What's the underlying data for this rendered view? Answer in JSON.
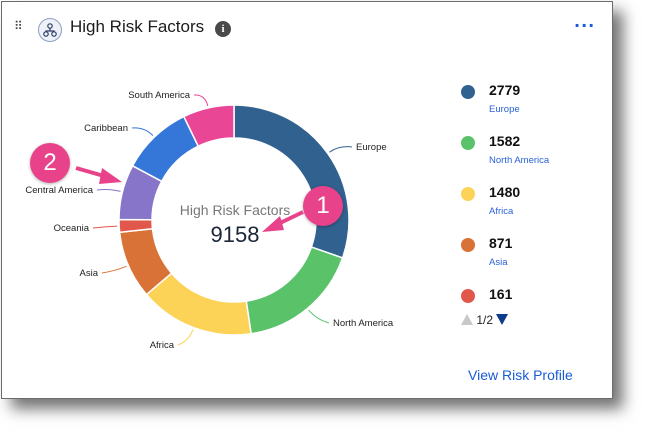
{
  "header": {
    "title": "High Risk Factors",
    "info_icon": "info-icon",
    "menu_icon": "more-horizontal-icon",
    "drag_icon": "drag-handle-icon",
    "widget_icon": "hierarchy-icon"
  },
  "center": {
    "label": "High Risk Factors",
    "total": "9158"
  },
  "chart_data": {
    "type": "pie",
    "variant": "donut",
    "categories": [
      "Europe",
      "North America",
      "Africa",
      "Asia",
      "Oceania",
      "Central America",
      "Caribbean",
      "South America"
    ],
    "values": [
      2779,
      1582,
      1480,
      871,
      161,
      711,
      916,
      658
    ],
    "colors": [
      "#30618f",
      "#5ac36a",
      "#fcd257",
      "#d97236",
      "#e2574c",
      "#8675c9",
      "#3576d9",
      "#e94796"
    ],
    "total": 9158
  },
  "legend": {
    "items": [
      {
        "value": "2779",
        "name": "Europe",
        "color": "#30618f"
      },
      {
        "value": "1582",
        "name": "North America",
        "color": "#5ac36a"
      },
      {
        "value": "1480",
        "name": "Africa",
        "color": "#fcd257"
      },
      {
        "value": "871",
        "name": "Asia",
        "color": "#d97236"
      },
      {
        "value": "161",
        "name": "",
        "color": "#e2574c"
      }
    ],
    "page": "1/2"
  },
  "link": "View Risk Profile",
  "annotations": [
    {
      "text": "1",
      "color": "#e8438a"
    },
    {
      "text": "2",
      "color": "#e8438a"
    }
  ]
}
